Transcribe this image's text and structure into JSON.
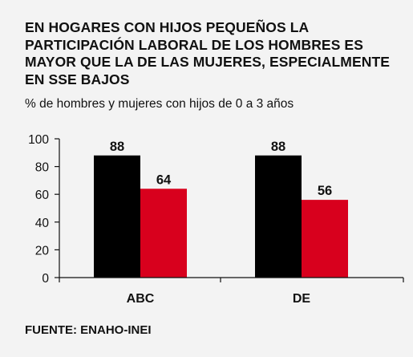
{
  "title_lines": [
    "EN HOGARES CON HIJOS PEQUEÑOS LA",
    "PARTICIPACIÓN LABORAL DE LOS HOMBRES ES",
    "MAYOR QUE LA DE LAS MUJERES, ESPECIALMENTE",
    "EN SSE BAJOS"
  ],
  "subtitle": "% de hombres y mujeres con hijos de 0 a 3 años",
  "source": "FUENTE: ENAHO-INEI",
  "colors": {
    "men": "#000000",
    "women": "#d8001d",
    "axis": "#111111",
    "background": "#f3f3f3"
  },
  "chart_data": {
    "type": "bar",
    "title": "EN HOGARES CON HIJOS PEQUEÑOS LA PARTICIPACIÓN LABORAL DE LOS HOMBRES ES MAYOR QUE LA DE LAS MUJERES, ESPECIALMENTE EN SSE BAJOS",
    "subtitle": "% de hombres y mujeres con hijos de 0 a 3 años",
    "categories": [
      "ABC",
      "DE"
    ],
    "series": [
      {
        "values": [
          88,
          88
        ],
        "color": "#000000"
      },
      {
        "values": [
          64,
          56
        ],
        "color": "#d8001d"
      }
    ],
    "yticks": [
      "0",
      "20",
      "40",
      "60",
      "80",
      "100"
    ],
    "ylim": [
      0,
      100
    ],
    "grid": false,
    "legend": "none",
    "data_labels": true
  }
}
